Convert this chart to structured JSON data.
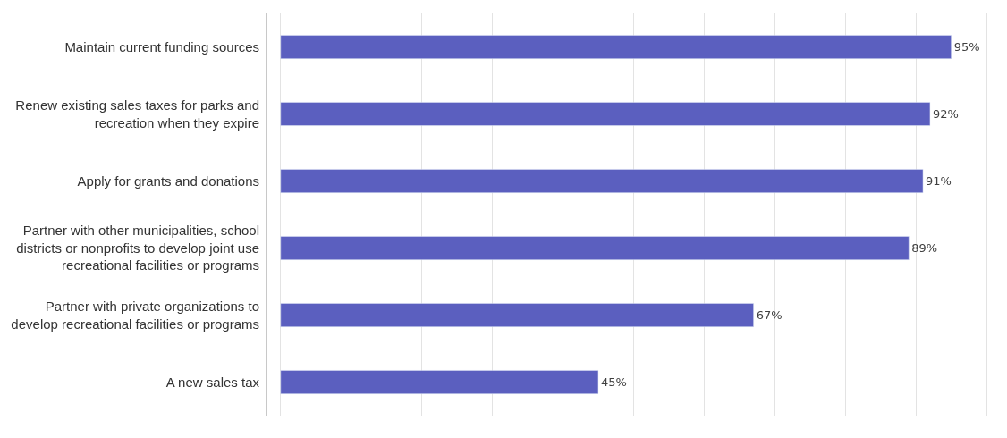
{
  "chart_data": {
    "type": "bar",
    "orientation": "horizontal",
    "categories": [
      "Maintain current funding sources",
      "Renew existing sales taxes for parks and\nrecreation when they expire",
      "Apply for grants and donations",
      "Partner with other municipalities, school\ndistricts or nonprofits to develop joint use\nrecreational facilities or programs",
      "Partner with private organizations to\ndevelop recreational facilities or programs",
      "A new sales tax"
    ],
    "values": [
      95,
      92,
      91,
      89,
      67,
      45
    ],
    "value_labels": [
      "95%",
      "92%",
      "91%",
      "89%",
      "67%",
      "45%"
    ],
    "color": "#5b5fbf",
    "xlim": [
      -2,
      101
    ],
    "xticks": [
      {
        "value": 0,
        "label": null
      },
      {
        "value": 10,
        "label": null
      },
      {
        "value": 20,
        "label": null
      },
      {
        "value": 30,
        "label": null
      },
      {
        "value": 40,
        "label": null
      },
      {
        "value": 50,
        "label": null
      },
      {
        "value": 60,
        "label": null
      },
      {
        "value": 70,
        "label": null
      },
      {
        "value": 80,
        "label": null
      },
      {
        "value": 90,
        "label": null
      },
      {
        "value": 100,
        "label": null
      }
    ],
    "grid": "x",
    "tick_labels": "y"
  }
}
